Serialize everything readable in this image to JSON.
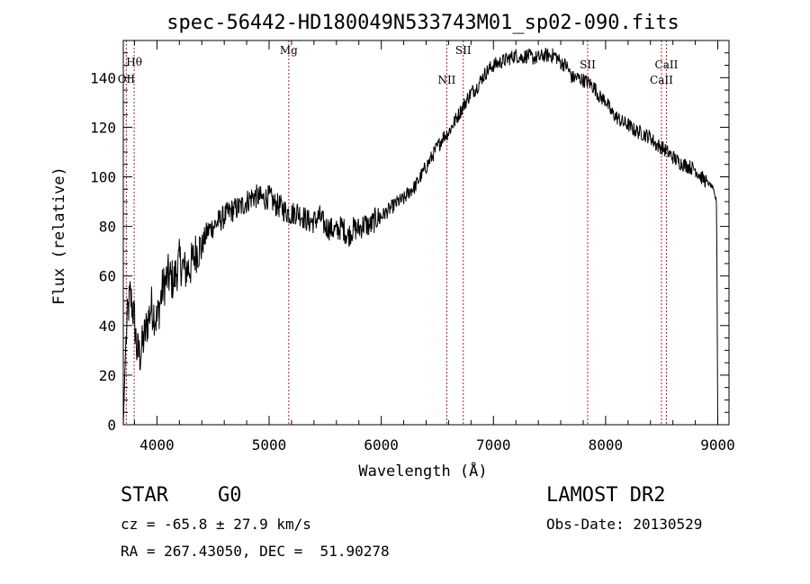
{
  "chart_data": {
    "type": "line",
    "title": "spec-56442-HD180049N533743M01_sp02-090.fits",
    "xlabel": "Wavelength (Å)",
    "ylabel": "Flux (relative)",
    "xlim": [
      3700,
      9100
    ],
    "ylim": [
      0,
      155
    ],
    "x_ticks": [
      4000,
      5000,
      6000,
      7000,
      8000,
      9000
    ],
    "y_ticks": [
      0,
      20,
      40,
      60,
      80,
      100,
      120,
      140
    ],
    "grid": false,
    "line_color": "#000000",
    "marker_color": "#b22222",
    "spectrum": {
      "name": "",
      "x": [
        3700,
        3720,
        3740,
        3760,
        3780,
        3800,
        3820,
        3850,
        3900,
        3950,
        4000,
        4050,
        4100,
        4150,
        4200,
        4250,
        4300,
        4350,
        4400,
        4450,
        4500,
        4550,
        4600,
        4650,
        4700,
        4750,
        4800,
        4850,
        4900,
        4950,
        5000,
        5050,
        5100,
        5150,
        5200,
        5250,
        5300,
        5350,
        5400,
        5450,
        5500,
        5550,
        5600,
        5650,
        5700,
        5750,
        5800,
        5850,
        5900,
        5950,
        6000,
        6050,
        6100,
        6150,
        6200,
        6250,
        6300,
        6350,
        6400,
        6450,
        6500,
        6550,
        6600,
        6650,
        6700,
        6750,
        6800,
        6850,
        6900,
        6950,
        7000,
        7050,
        7100,
        7150,
        7200,
        7250,
        7300,
        7350,
        7400,
        7450,
        7500,
        7550,
        7600,
        7650,
        7700,
        7750,
        7800,
        7850,
        7900,
        7950,
        8000,
        8050,
        8100,
        8150,
        8200,
        8250,
        8300,
        8350,
        8400,
        8450,
        8500,
        8550,
        8600,
        8650,
        8700,
        8750,
        8800,
        8850,
        8900,
        8950,
        8990,
        9000
      ],
      "y": [
        0,
        30,
        45,
        52,
        48,
        42,
        30,
        28,
        38,
        48,
        42,
        55,
        60,
        58,
        66,
        62,
        64,
        70,
        72,
        78,
        80,
        82,
        84,
        86,
        87,
        88,
        90,
        92,
        92,
        91,
        92,
        89,
        88,
        86,
        85,
        86,
        84,
        82,
        82,
        84,
        80,
        79,
        78,
        80,
        76,
        79,
        79,
        81,
        80,
        83,
        84,
        86,
        88,
        90,
        91,
        94,
        96,
        100,
        104,
        108,
        112,
        116,
        118,
        122,
        126,
        130,
        134,
        136,
        140,
        143,
        145,
        146,
        147,
        148,
        149,
        148,
        149,
        148,
        148,
        149,
        149,
        149,
        146,
        145,
        140,
        140,
        139,
        138,
        136,
        132,
        131,
        126,
        124,
        122,
        121,
        119,
        118,
        117,
        116,
        113,
        112,
        110,
        108,
        106,
        105,
        104,
        103,
        100,
        98,
        96,
        90,
        0
      ]
    },
    "line_markers": [
      {
        "label": "Hθ",
        "x": 3797
      },
      {
        "label": "OII",
        "x": 3727
      },
      {
        "label": "Mg",
        "x": 5175
      },
      {
        "label": "NII",
        "x": 6584
      },
      {
        "label": "SII",
        "x": 6731
      },
      {
        "label": "SII",
        "x": 7840
      },
      {
        "label": "CaII",
        "x": 8542
      },
      {
        "label": "CaII",
        "x": 8498
      }
    ]
  },
  "info": {
    "class": "STAR",
    "subclass": "G0",
    "redshift": "cz = -65.8 ± 27.9 km/s",
    "coords": "RA = 267.43050, DEC =  51.90278",
    "survey": "LAMOST DR2",
    "obs_date": "Obs-Date: 20130529"
  }
}
